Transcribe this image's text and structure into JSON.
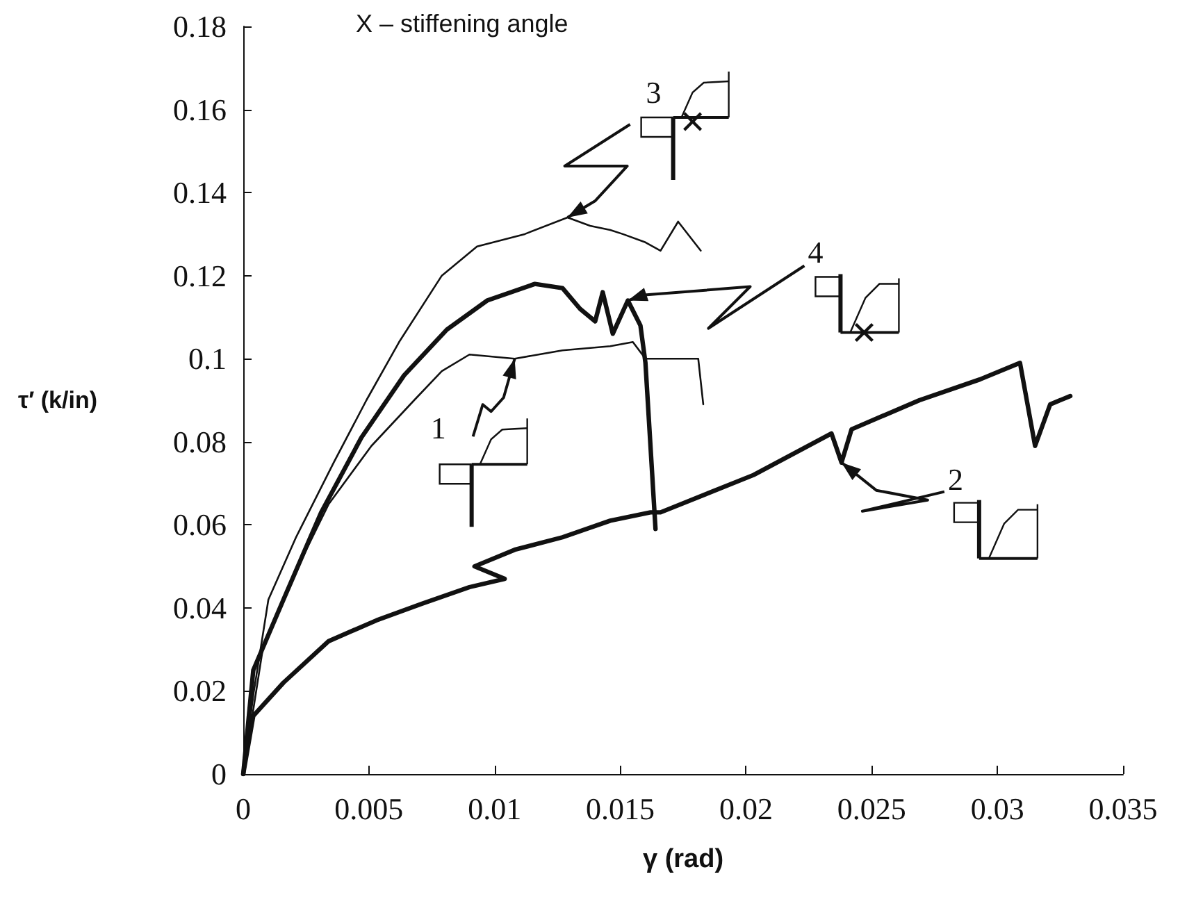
{
  "chart_data": {
    "type": "line",
    "xlabel": "γ (rad)",
    "ylabel": "τ′ (k/in)",
    "xlim": [
      0,
      0.035
    ],
    "xticks": [
      0,
      0.005,
      0.01,
      0.015,
      0.02,
      0.025,
      0.03,
      0.035
    ],
    "ylim": [
      0,
      0.18
    ],
    "yticks": [
      0,
      0.02,
      0.04,
      0.06,
      0.08,
      0.1,
      0.12,
      0.14,
      0.16,
      0.18
    ],
    "grid": false,
    "marker": "none",
    "line_style": "solid",
    "series": [
      {
        "color": "#111111",
        "x": [
          0,
          0.0008,
          0.0021,
          0.0034,
          0.0051,
          0.0068,
          0.0079,
          0.009,
          0.0108,
          0.0127,
          0.0146,
          0.0155,
          0.016,
          0.0181,
          0.0183
        ],
        "values": [
          0,
          0.031,
          0.049,
          0.065,
          0.079,
          0.09,
          0.097,
          0.101,
          0.1,
          0.102,
          0.103,
          0.104,
          0.1,
          0.1,
          0.089
        ]
      },
      {
        "color": "#111111",
        "x": [
          0,
          0.0004,
          0.0016,
          0.0034,
          0.0053,
          0.0071,
          0.009,
          0.0104,
          0.0092,
          0.0108,
          0.0127,
          0.0146,
          0.0162,
          0.0166,
          0.0203,
          0.0234,
          0.0238,
          0.0242,
          0.0269,
          0.0293,
          0.0309,
          0.0315,
          0.0321,
          0.0329
        ],
        "values": [
          0,
          0.014,
          0.022,
          0.032,
          0.037,
          0.041,
          0.045,
          0.047,
          0.05,
          0.054,
          0.057,
          0.061,
          0.063,
          0.063,
          0.072,
          0.082,
          0.075,
          0.083,
          0.09,
          0.095,
          0.099,
          0.079,
          0.089,
          0.091
        ]
      },
      {
        "color": "#111111",
        "x": [
          0,
          0.0004,
          0.001,
          0.0021,
          0.0036,
          0.0049,
          0.0062,
          0.0079,
          0.0093,
          0.0112,
          0.0129,
          0.0138,
          0.0146,
          0.0151,
          0.016,
          0.0166,
          0.0173,
          0.0182
        ],
        "values": [
          0,
          0.019,
          0.042,
          0.057,
          0.075,
          0.09,
          0.104,
          0.12,
          0.127,
          0.13,
          0.134,
          0.132,
          0.131,
          0.13,
          0.128,
          0.126,
          0.133,
          0.126
        ]
      },
      {
        "color": "#111111",
        "x": [
          0,
          0.0004,
          0.0016,
          0.0031,
          0.0047,
          0.0064,
          0.0081,
          0.0097,
          0.0116,
          0.0127,
          0.0134,
          0.014,
          0.0143,
          0.0147,
          0.0153,
          0.0158,
          0.016,
          0.0164
        ],
        "values": [
          0,
          0.025,
          0.042,
          0.063,
          0.081,
          0.096,
          0.107,
          0.114,
          0.118,
          0.117,
          0.112,
          0.109,
          0.116,
          0.106,
          0.114,
          0.108,
          0.099,
          0.059
        ]
      }
    ],
    "annotations": [
      "X – stiffening angle",
      {
        "text": "1",
        "x": 0.0108,
        "y": 0.1
      },
      {
        "text": "2",
        "x": 0.0238,
        "y": 0.075
      },
      {
        "text": "3",
        "x": 0.0129,
        "y": 0.134
      },
      {
        "text": "4",
        "x": 0.0153,
        "y": 0.114
      }
    ]
  }
}
